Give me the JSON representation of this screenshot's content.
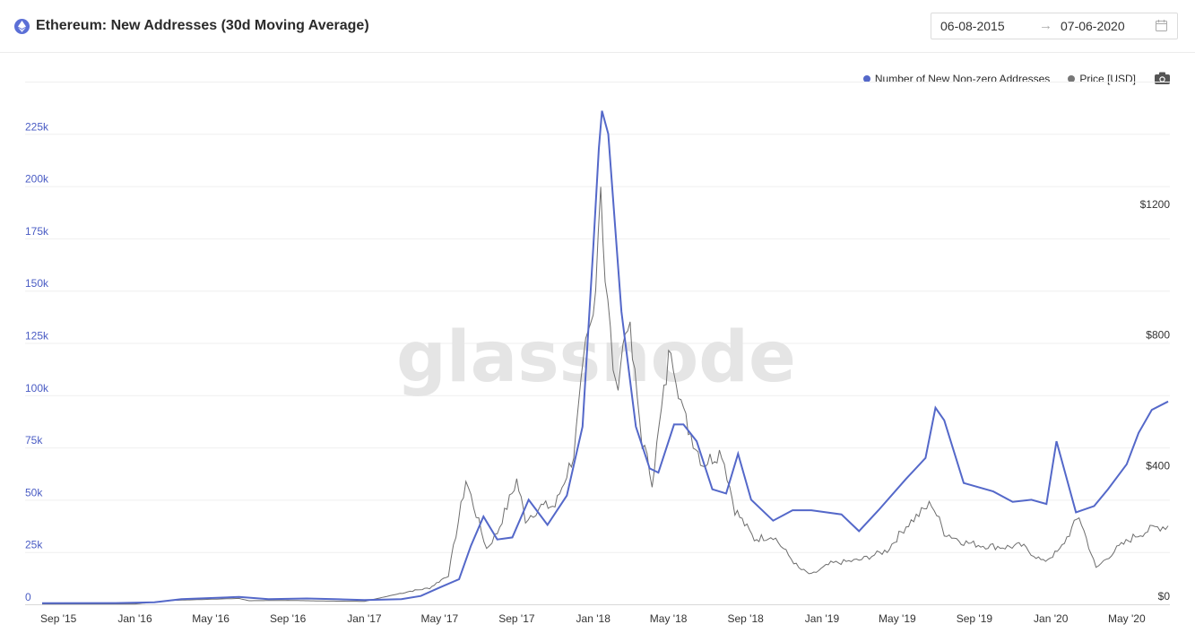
{
  "header": {
    "title": "Ethereum: New Addresses (30d Moving Average)",
    "date_start": "06-08-2015",
    "date_end": "07-06-2020",
    "arrow": "→"
  },
  "watermark": "glassnode",
  "legend": {
    "series1": "Number of New Non-zero Addresses",
    "series2": "Price [USD]"
  },
  "colors": {
    "addresses": "#5468c9",
    "price": "#6e6e6e",
    "axis_left": "#4a5cc4"
  },
  "chart_data": {
    "type": "line",
    "x_axis": {
      "ticks": [
        "Sep '15",
        "Jan '16",
        "May '16",
        "Sep '16",
        "Jan '17",
        "May '17",
        "Sep '17",
        "Jan '18",
        "May '18",
        "Sep '18",
        "Jan '19",
        "May '19",
        "Sep '19",
        "Jan '20",
        "May '20"
      ]
    },
    "y_left": {
      "ticks": [
        "0",
        "25k",
        "50k",
        "75k",
        "100k",
        "125k",
        "150k",
        "175k",
        "200k",
        "225k"
      ],
      "range": [
        0,
        250000
      ]
    },
    "y_right": {
      "ticks": [
        "$0",
        "$400",
        "$800",
        "$1200"
      ],
      "range": [
        0,
        1600
      ]
    },
    "series": [
      {
        "name": "Number of New Non-zero Addresses",
        "axis": "left",
        "points": [
          [
            "2015-08-06",
            500
          ],
          [
            "2015-12-01",
            600
          ],
          [
            "2016-02-01",
            1000
          ],
          [
            "2016-03-15",
            2500
          ],
          [
            "2016-05-01",
            3000
          ],
          [
            "2016-06-15",
            3500
          ],
          [
            "2016-08-01",
            2500
          ],
          [
            "2016-10-01",
            2800
          ],
          [
            "2016-11-15",
            2500
          ],
          [
            "2017-01-01",
            2000
          ],
          [
            "2017-03-01",
            2500
          ],
          [
            "2017-04-01",
            4000
          ],
          [
            "2017-05-01",
            8000
          ],
          [
            "2017-06-01",
            12000
          ],
          [
            "2017-06-20",
            28000
          ],
          [
            "2017-07-10",
            42000
          ],
          [
            "2017-08-01",
            31000
          ],
          [
            "2017-08-25",
            32000
          ],
          [
            "2017-09-20",
            50000
          ],
          [
            "2017-10-20",
            38000
          ],
          [
            "2017-11-20",
            52000
          ],
          [
            "2017-12-15",
            85000
          ],
          [
            "2018-01-01",
            170000
          ],
          [
            "2018-01-10",
            218000
          ],
          [
            "2018-01-15",
            236000
          ],
          [
            "2018-01-25",
            225000
          ],
          [
            "2018-02-15",
            140000
          ],
          [
            "2018-03-10",
            85000
          ],
          [
            "2018-04-01",
            65000
          ],
          [
            "2018-04-15",
            63000
          ],
          [
            "2018-05-10",
            86000
          ],
          [
            "2018-05-25",
            86000
          ],
          [
            "2018-06-15",
            78000
          ],
          [
            "2018-07-10",
            55000
          ],
          [
            "2018-08-01",
            53000
          ],
          [
            "2018-08-20",
            72000
          ],
          [
            "2018-09-10",
            50000
          ],
          [
            "2018-10-15",
            40000
          ],
          [
            "2018-11-15",
            45000
          ],
          [
            "2018-12-15",
            45000
          ],
          [
            "2019-02-01",
            43000
          ],
          [
            "2019-03-01",
            35000
          ],
          [
            "2019-04-01",
            45000
          ],
          [
            "2019-05-15",
            60000
          ],
          [
            "2019-06-15",
            70000
          ],
          [
            "2019-07-01",
            94000
          ],
          [
            "2019-07-15",
            88000
          ],
          [
            "2019-08-15",
            58000
          ],
          [
            "2019-10-01",
            54000
          ],
          [
            "2019-11-01",
            49000
          ],
          [
            "2019-12-01",
            50000
          ],
          [
            "2019-12-25",
            48000
          ],
          [
            "2020-01-10",
            78000
          ],
          [
            "2020-02-10",
            44000
          ],
          [
            "2020-03-10",
            47000
          ],
          [
            "2020-04-01",
            55000
          ],
          [
            "2020-05-01",
            67000
          ],
          [
            "2020-05-20",
            82000
          ],
          [
            "2020-06-10",
            93000
          ],
          [
            "2020-07-06",
            97000
          ]
        ]
      },
      {
        "name": "Price [USD]",
        "axis": "right",
        "points": [
          [
            "2015-08-06",
            1
          ],
          [
            "2016-01-01",
            1
          ],
          [
            "2016-03-01",
            12
          ],
          [
            "2016-06-15",
            18
          ],
          [
            "2016-07-01",
            11
          ],
          [
            "2016-09-01",
            12
          ],
          [
            "2016-11-01",
            10
          ],
          [
            "2017-01-01",
            9
          ],
          [
            "2017-03-15",
            40
          ],
          [
            "2017-04-15",
            50
          ],
          [
            "2017-05-15",
            90
          ],
          [
            "2017-06-12",
            380
          ],
          [
            "2017-06-20",
            330
          ],
          [
            "2017-07-15",
            170
          ],
          [
            "2017-08-01",
            220
          ],
          [
            "2017-09-01",
            380
          ],
          [
            "2017-09-15",
            260
          ],
          [
            "2017-10-10",
            300
          ],
          [
            "2017-11-01",
            300
          ],
          [
            "2017-12-01",
            460
          ],
          [
            "2017-12-20",
            780
          ],
          [
            "2018-01-01",
            880
          ],
          [
            "2018-01-13",
            1300
          ],
          [
            "2018-01-20",
            1000
          ],
          [
            "2018-02-06",
            650
          ],
          [
            "2018-02-25",
            880
          ],
          [
            "2018-03-20",
            500
          ],
          [
            "2018-04-05",
            380
          ],
          [
            "2018-05-05",
            800
          ],
          [
            "2018-05-25",
            580
          ],
          [
            "2018-06-25",
            430
          ],
          [
            "2018-07-25",
            470
          ],
          [
            "2018-08-15",
            290
          ],
          [
            "2018-09-15",
            200
          ],
          [
            "2018-10-15",
            210
          ],
          [
            "2018-11-25",
            110
          ],
          [
            "2018-12-15",
            90
          ],
          [
            "2019-01-15",
            125
          ],
          [
            "2019-03-01",
            135
          ],
          [
            "2019-04-15",
            165
          ],
          [
            "2019-05-15",
            240
          ],
          [
            "2019-06-25",
            310
          ],
          [
            "2019-07-15",
            220
          ],
          [
            "2019-08-15",
            190
          ],
          [
            "2019-09-15",
            180
          ],
          [
            "2019-10-20",
            175
          ],
          [
            "2019-11-15",
            180
          ],
          [
            "2019-12-20",
            130
          ],
          [
            "2020-01-15",
            165
          ],
          [
            "2020-02-15",
            270
          ],
          [
            "2020-03-13",
            110
          ],
          [
            "2020-04-15",
            170
          ],
          [
            "2020-05-15",
            210
          ],
          [
            "2020-06-15",
            235
          ],
          [
            "2020-07-06",
            240
          ]
        ]
      }
    ]
  }
}
